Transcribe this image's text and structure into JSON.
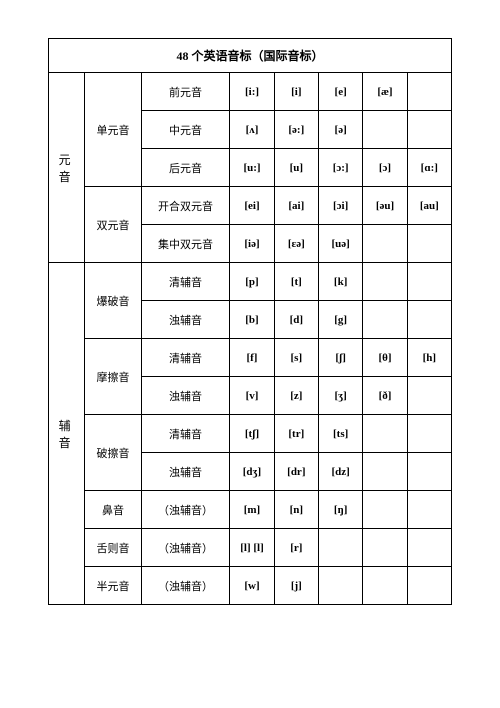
{
  "title": "48 个英语音标（国际音标）",
  "section1": "元 音",
  "section2": "辅 音",
  "group": {
    "g1": "单元音",
    "g2": "双元音",
    "g3": "爆破音",
    "g4": "摩擦音",
    "g5": "破擦音",
    "g6": "鼻音",
    "g7": "舌则音",
    "g8": "半元音"
  },
  "rows": {
    "r1": {
      "label": "前元音",
      "c": [
        "[i:]",
        "[i]",
        "[e]",
        "[æ]",
        ""
      ]
    },
    "r2": {
      "label": "中元音",
      "c": [
        "[ʌ]",
        "[ə:]",
        "[ə]",
        "",
        ""
      ]
    },
    "r3": {
      "label": "后元音",
      "c": [
        "[u:]",
        "[u]",
        "[ɔ:]",
        "[ɔ]",
        "[ɑ:]"
      ]
    },
    "r4": {
      "label": "开合双元音",
      "c": [
        "[ei]",
        "[ai]",
        "[ɔi]",
        "[əu]",
        "[au]"
      ]
    },
    "r5": {
      "label": "集中双元音",
      "c": [
        "[iə]",
        "[ɛə]",
        "[uə]",
        "",
        ""
      ]
    },
    "r6": {
      "label": "清辅音",
      "c": [
        "[p]",
        "[t]",
        "[k]",
        "",
        ""
      ]
    },
    "r7": {
      "label": "浊辅音",
      "c": [
        "[b]",
        "[d]",
        "[g]",
        "",
        ""
      ]
    },
    "r8": {
      "label": "清辅音",
      "c": [
        "[f]",
        "[s]",
        "[ʃ]",
        "[θ]",
        "[h]"
      ]
    },
    "r9": {
      "label": "浊辅音",
      "c": [
        "[v]",
        "[z]",
        "[ʒ]",
        "[ð]",
        ""
      ]
    },
    "r10": {
      "label": "清辅音",
      "c": [
        "[tʃ]",
        "[tr]",
        "[ts]",
        "",
        ""
      ]
    },
    "r11": {
      "label": "浊辅音",
      "c": [
        "[dʒ]",
        "[dr]",
        "[dz]",
        "",
        ""
      ]
    },
    "r12": {
      "label": "（浊辅音）",
      "c": [
        "[m]",
        "[n]",
        "[ŋ]",
        "",
        ""
      ]
    },
    "r13": {
      "label": "（浊辅音）",
      "c": [
        "[l]  [l]",
        "[r]",
        "",
        "",
        ""
      ]
    },
    "r14": {
      "label": "（浊辅音）",
      "c": [
        "[w]",
        "[j]",
        "",
        "",
        ""
      ]
    }
  }
}
